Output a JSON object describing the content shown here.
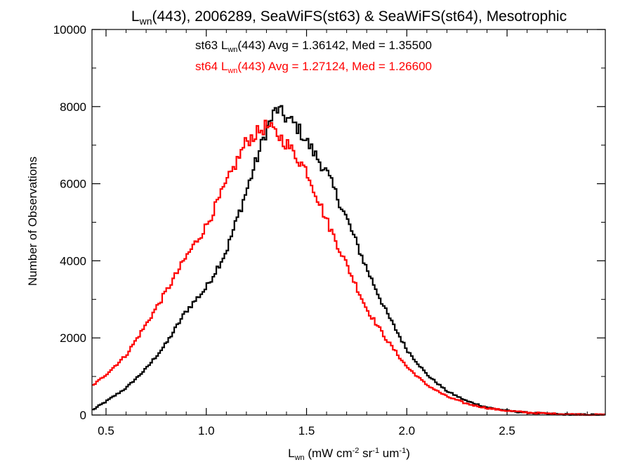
{
  "chart_data": {
    "type": "line",
    "title": {
      "pre": "L",
      "sub": "wn",
      "post": "(443), 2006289, SeaWiFS(st63) & SeaWiFS(st64), Mesotrophic"
    },
    "xlabel": {
      "pre": "L",
      "sub": "wn",
      "mid1": " (mW cm",
      "sup1": "-2",
      "mid2": " sr",
      "sup2": "-1",
      "mid3": " um",
      "sup3": "-1",
      "post": ")"
    },
    "ylabel": "Number of Observations",
    "xlim": [
      0.43,
      2.99
    ],
    "ylim": [
      0,
      10000
    ],
    "xticks": [
      0.5,
      1.0,
      1.5,
      2.0,
      2.5
    ],
    "xtick_labels": [
      "0.5",
      "1.0",
      "1.5",
      "2.0",
      "2.5"
    ],
    "yticks": [
      0,
      2000,
      4000,
      6000,
      8000,
      10000
    ],
    "ytick_labels": [
      "0",
      "2000",
      "4000",
      "6000",
      "8000",
      "10000"
    ],
    "grid": false,
    "step": "histogram",
    "bin_width": 0.01,
    "annotations": [
      {
        "pre": "st63 L",
        "sub": "wn",
        "post": "(443) Avg = 1.36142, Med = 1.35500",
        "color": "#000000"
      },
      {
        "pre": "st64 L",
        "sub": "wn",
        "post": "(443) Avg = 1.27124, Med = 1.26600",
        "color": "#ff0000"
      }
    ],
    "series": [
      {
        "color": "#000000",
        "points": [
          [
            0.43,
            120
          ],
          [
            0.5,
            350
          ],
          [
            0.6,
            700
          ],
          [
            0.7,
            1200
          ],
          [
            0.8,
            1850
          ],
          [
            0.9,
            2700
          ],
          [
            1.0,
            3300
          ],
          [
            1.1,
            4250
          ],
          [
            1.2,
            5800
          ],
          [
            1.3,
            7400
          ],
          [
            1.35,
            7950
          ],
          [
            1.4,
            7700
          ],
          [
            1.45,
            7500
          ],
          [
            1.5,
            7100
          ],
          [
            1.6,
            6300
          ],
          [
            1.7,
            5100
          ],
          [
            1.8,
            3800
          ],
          [
            1.9,
            2650
          ],
          [
            2.0,
            1700
          ],
          [
            2.1,
            1050
          ],
          [
            2.2,
            620
          ],
          [
            2.3,
            360
          ],
          [
            2.4,
            200
          ],
          [
            2.5,
            110
          ],
          [
            2.6,
            60
          ],
          [
            2.7,
            30
          ],
          [
            2.8,
            15
          ],
          [
            2.9,
            8
          ],
          [
            2.99,
            3
          ]
        ]
      },
      {
        "color": "#ff0000",
        "points": [
          [
            0.43,
            750
          ],
          [
            0.5,
            1050
          ],
          [
            0.6,
            1550
          ],
          [
            0.7,
            2350
          ],
          [
            0.8,
            3200
          ],
          [
            0.9,
            4100
          ],
          [
            1.0,
            4900
          ],
          [
            1.1,
            6000
          ],
          [
            1.2,
            7100
          ],
          [
            1.3,
            7500
          ],
          [
            1.35,
            7300
          ],
          [
            1.4,
            7050
          ],
          [
            1.5,
            6350
          ],
          [
            1.6,
            5050
          ],
          [
            1.7,
            3900
          ],
          [
            1.8,
            2750
          ],
          [
            1.9,
            1950
          ],
          [
            2.0,
            1250
          ],
          [
            2.1,
            780
          ],
          [
            2.2,
            480
          ],
          [
            2.3,
            290
          ],
          [
            2.4,
            180
          ],
          [
            2.5,
            110
          ],
          [
            2.6,
            65
          ],
          [
            2.7,
            38
          ],
          [
            2.8,
            20
          ],
          [
            2.9,
            10
          ],
          [
            2.99,
            4
          ]
        ]
      }
    ]
  }
}
